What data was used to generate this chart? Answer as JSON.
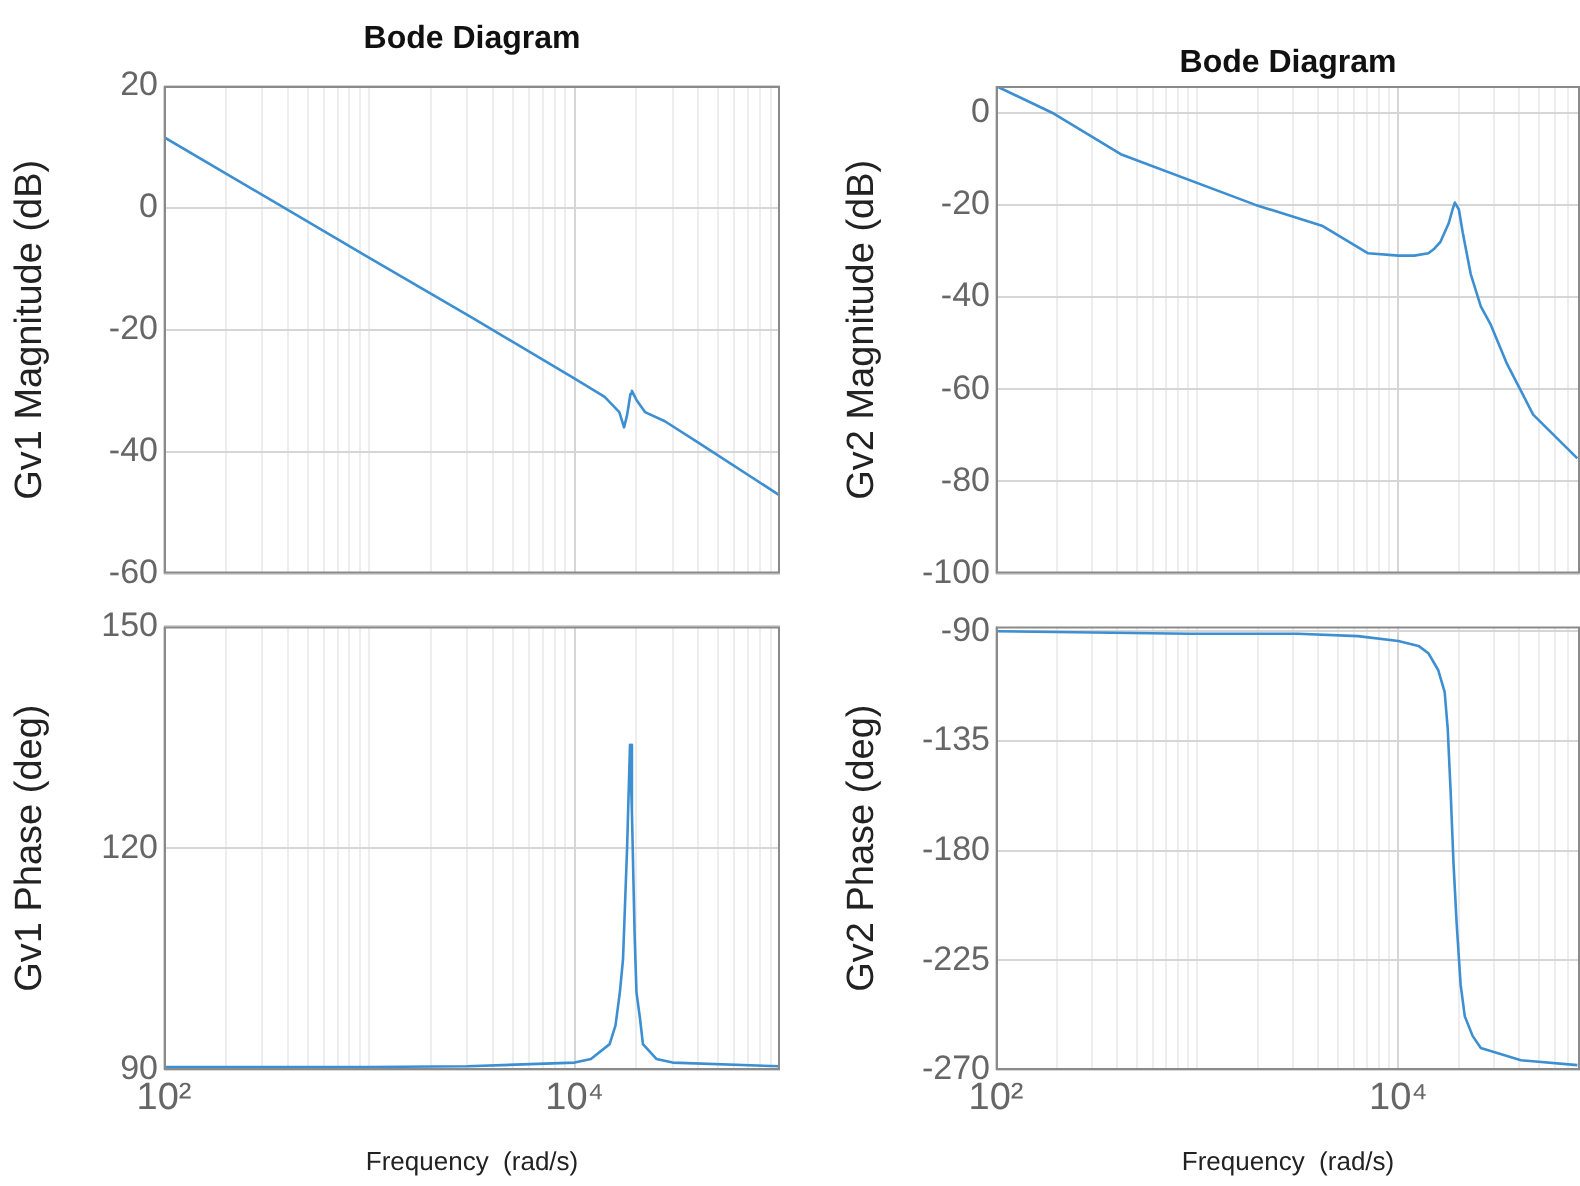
{
  "chart_data": [
    {
      "type": "line",
      "title": "Bode Diagram",
      "ylabel": "Gv1 Magnitude (dB)",
      "log": "x",
      "grid": true,
      "tick_labels": "y",
      "xlim": [
        100,
        100000
      ],
      "ylim": [
        -60,
        20
      ],
      "xticks": [
        {
          "value": 100,
          "label": null
        },
        {
          "value": 200,
          "label": null
        },
        {
          "value": 300,
          "label": null
        },
        {
          "value": 400,
          "label": null
        },
        {
          "value": 500,
          "label": null
        },
        {
          "value": 600,
          "label": null
        },
        {
          "value": 700,
          "label": null
        },
        {
          "value": 800,
          "label": null
        },
        {
          "value": 900,
          "label": null
        },
        {
          "value": 1000,
          "label": null
        },
        {
          "value": 2000,
          "label": null
        },
        {
          "value": 3000,
          "label": null
        },
        {
          "value": 4000,
          "label": null
        },
        {
          "value": 5000,
          "label": null
        },
        {
          "value": 6000,
          "label": null
        },
        {
          "value": 7000,
          "label": null
        },
        {
          "value": 8000,
          "label": null
        },
        {
          "value": 9000,
          "label": null
        },
        {
          "value": 10000,
          "label": null
        },
        {
          "value": 20000,
          "label": null
        },
        {
          "value": 30000,
          "label": null
        },
        {
          "value": 40000,
          "label": null
        },
        {
          "value": 50000,
          "label": null
        },
        {
          "value": 60000,
          "label": null
        },
        {
          "value": 70000,
          "label": null
        },
        {
          "value": 80000,
          "label": null
        },
        {
          "value": 90000,
          "label": null
        }
      ],
      "yticks": [
        -60,
        -40,
        -20,
        0,
        20
      ],
      "series": [
        {
          "color": "#3d8fd1",
          "x": [
            100,
            1000,
            3162,
            10000,
            14000,
            16500,
            17400,
            18000,
            18700,
            19000,
            20000,
            22000,
            27500,
            40000,
            100000
          ],
          "values": [
            11.6,
            -8.2,
            -18,
            -28,
            -31,
            -33.5,
            -36,
            -34,
            -30.5,
            -30,
            -31.5,
            -33.5,
            -35,
            -38.5,
            -47.2
          ]
        }
      ]
    },
    {
      "type": "line",
      "title": "Bode Diagram",
      "ylabel": "Gv2 Magnitude (dB)",
      "log": "x",
      "grid": true,
      "tick_labels": "y",
      "xlim": [
        100,
        80000
      ],
      "ylim": [
        -100,
        5.8
      ],
      "xticks": [
        {
          "value": 100,
          "label": null
        },
        {
          "value": 200,
          "label": null
        },
        {
          "value": 300,
          "label": null
        },
        {
          "value": 400,
          "label": null
        },
        {
          "value": 500,
          "label": null
        },
        {
          "value": 600,
          "label": null
        },
        {
          "value": 700,
          "label": null
        },
        {
          "value": 800,
          "label": null
        },
        {
          "value": 900,
          "label": null
        },
        {
          "value": 1000,
          "label": null
        },
        {
          "value": 2000,
          "label": null
        },
        {
          "value": 3000,
          "label": null
        },
        {
          "value": 4000,
          "label": null
        },
        {
          "value": 5000,
          "label": null
        },
        {
          "value": 6000,
          "label": null
        },
        {
          "value": 7000,
          "label": null
        },
        {
          "value": 8000,
          "label": null
        },
        {
          "value": 9000,
          "label": null
        },
        {
          "value": 10000,
          "label": null
        },
        {
          "value": 20000,
          "label": null
        },
        {
          "value": 30000,
          "label": null
        },
        {
          "value": 40000,
          "label": null
        },
        {
          "value": 50000,
          "label": null
        },
        {
          "value": 60000,
          "label": null
        },
        {
          "value": 70000,
          "label": null
        }
      ],
      "yticks": [
        -100,
        -80,
        -60,
        -40,
        -20,
        0
      ],
      "series": [
        {
          "color": "#3d8fd1",
          "x": [
            100,
            190,
            417,
            1950,
            4170,
            7080,
            10000,
            12000,
            14100,
            15100,
            16200,
            17800,
            18600,
            19100,
            20000,
            20900,
            22900,
            25700,
            28800,
            34700,
            46800,
            77600
          ],
          "values": [
            5.8,
            0,
            -9,
            -20,
            -24.5,
            -30.5,
            -31,
            -31,
            -30.5,
            -29.5,
            -28,
            -24,
            -21,
            -19.5,
            -21,
            -26,
            -35,
            -42,
            -46,
            -54.5,
            -65.5,
            -75
          ]
        }
      ]
    },
    {
      "type": "line",
      "xlabel": "Frequency  (rad/s)",
      "ylabel": "Gv1 Phase (deg)",
      "log": "x",
      "grid": true,
      "xlim": [
        100,
        100000
      ],
      "ylim": [
        90,
        150
      ],
      "xticks": [
        {
          "value": 100,
          "label": "10²"
        },
        {
          "value": 200,
          "label": null
        },
        {
          "value": 300,
          "label": null
        },
        {
          "value": 400,
          "label": null
        },
        {
          "value": 500,
          "label": null
        },
        {
          "value": 600,
          "label": null
        },
        {
          "value": 700,
          "label": null
        },
        {
          "value": 800,
          "label": null
        },
        {
          "value": 900,
          "label": null
        },
        {
          "value": 1000,
          "label": null
        },
        {
          "value": 2000,
          "label": null
        },
        {
          "value": 3000,
          "label": null
        },
        {
          "value": 4000,
          "label": null
        },
        {
          "value": 5000,
          "label": null
        },
        {
          "value": 6000,
          "label": null
        },
        {
          "value": 7000,
          "label": null
        },
        {
          "value": 8000,
          "label": null
        },
        {
          "value": 9000,
          "label": null
        },
        {
          "value": 10000,
          "label": "10⁴"
        },
        {
          "value": 20000,
          "label": null
        },
        {
          "value": 30000,
          "label": null
        },
        {
          "value": 40000,
          "label": null
        },
        {
          "value": 50000,
          "label": null
        },
        {
          "value": 60000,
          "label": null
        },
        {
          "value": 70000,
          "label": null
        },
        {
          "value": 80000,
          "label": null
        },
        {
          "value": 90000,
          "label": null
        }
      ],
      "yticks": [
        90,
        120,
        150
      ],
      "series": [
        {
          "color": "#3d8fd1",
          "x": [
            100,
            1000,
            3000,
            10000,
            12000,
            14800,
            15800,
            16600,
            17200,
            18000,
            18600,
            19000,
            19600,
            20000,
            20800,
            21500,
            25000,
            30000,
            100000
          ],
          "values": [
            90.4,
            90.4,
            90.5,
            91,
            91.5,
            93.5,
            96,
            100.5,
            105,
            120,
            134,
            125,
            108,
            100.5,
            97,
            93.5,
            91.5,
            91,
            90.5
          ]
        }
      ]
    },
    {
      "type": "line",
      "xlabel": "Frequency  (rad/s)",
      "ylabel": "Gv2 Phase (deg)",
      "log": "x",
      "grid": true,
      "xlim": [
        100,
        80000
      ],
      "ylim": [
        -270,
        -88
      ],
      "xticks": [
        {
          "value": 100,
          "label": "10²"
        },
        {
          "value": 200,
          "label": null
        },
        {
          "value": 300,
          "label": null
        },
        {
          "value": 400,
          "label": null
        },
        {
          "value": 500,
          "label": null
        },
        {
          "value": 600,
          "label": null
        },
        {
          "value": 700,
          "label": null
        },
        {
          "value": 800,
          "label": null
        },
        {
          "value": 900,
          "label": null
        },
        {
          "value": 1000,
          "label": null
        },
        {
          "value": 2000,
          "label": null
        },
        {
          "value": 3000,
          "label": null
        },
        {
          "value": 4000,
          "label": null
        },
        {
          "value": 5000,
          "label": null
        },
        {
          "value": 6000,
          "label": null
        },
        {
          "value": 7000,
          "label": null
        },
        {
          "value": 8000,
          "label": null
        },
        {
          "value": 9000,
          "label": null
        },
        {
          "value": 10000,
          "label": "10⁴"
        },
        {
          "value": 20000,
          "label": null
        },
        {
          "value": 30000,
          "label": null
        },
        {
          "value": 40000,
          "label": null
        },
        {
          "value": 50000,
          "label": null
        },
        {
          "value": 60000,
          "label": null
        },
        {
          "value": 70000,
          "label": null
        }
      ],
      "yticks": [
        -270,
        -225,
        -180,
        -135,
        -90
      ],
      "series": [
        {
          "color": "#3d8fd1",
          "x": [
            100,
            912,
            3160,
            6300,
            10000,
            12600,
            14100,
            15800,
            17000,
            17600,
            18200,
            18800,
            19500,
            20400,
            21400,
            23400,
            25700,
            40700,
            77600
          ],
          "values": [
            -90,
            -91,
            -91,
            -92,
            -94,
            -96,
            -99,
            -106,
            -115,
            -130,
            -156,
            -185,
            -210,
            -235,
            -248,
            -256,
            -261,
            -266,
            -268
          ]
        }
      ]
    }
  ]
}
